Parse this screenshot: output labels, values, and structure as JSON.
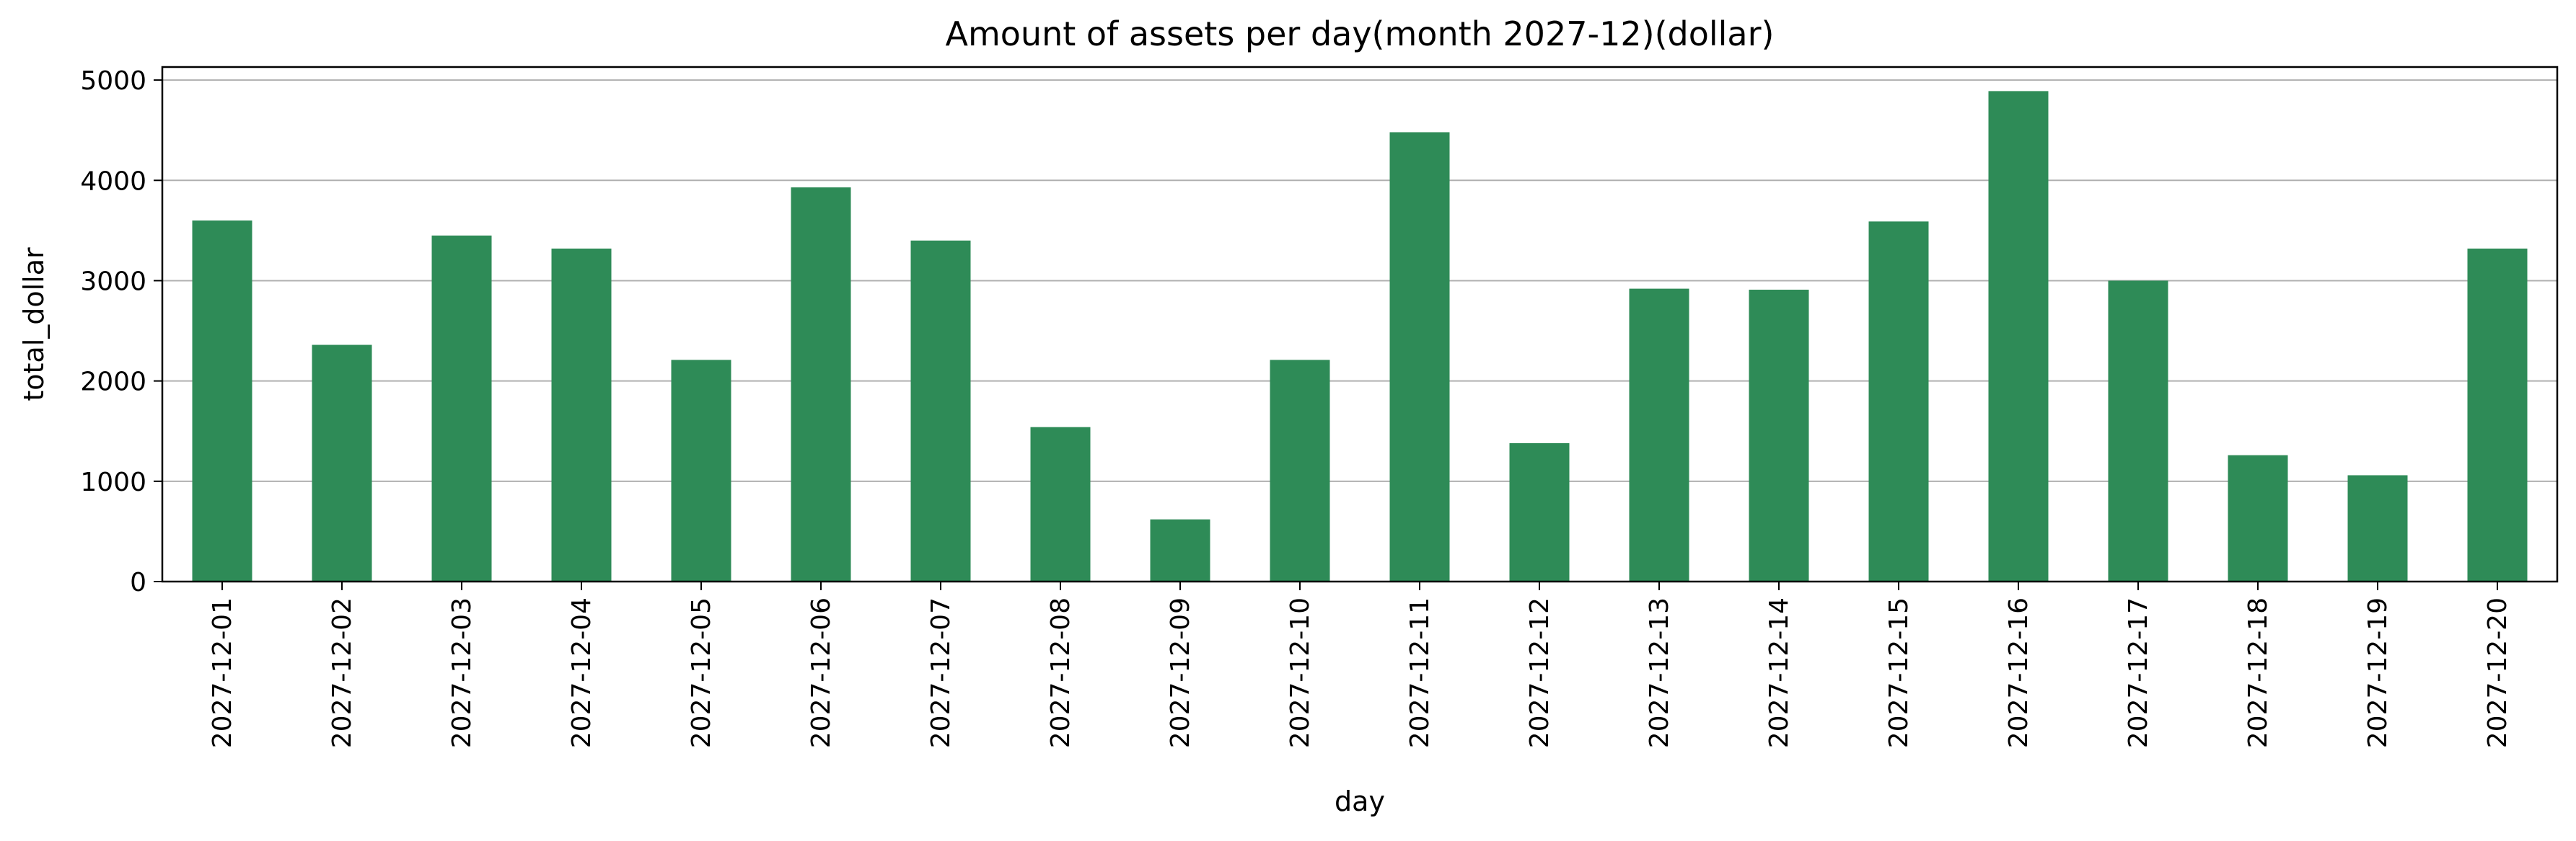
{
  "chart_data": {
    "type": "bar",
    "title": "Amount of assets per day(month  2027-12)(dollar)",
    "xlabel": "day",
    "ylabel": "total_dollar",
    "categories": [
      "2027-12-01",
      "2027-12-02",
      "2027-12-03",
      "2027-12-04",
      "2027-12-05",
      "2027-12-06",
      "2027-12-07",
      "2027-12-08",
      "2027-12-09",
      "2027-12-10",
      "2027-12-11",
      "2027-12-12",
      "2027-12-13",
      "2027-12-14",
      "2027-12-15",
      "2027-12-16",
      "2027-12-17",
      "2027-12-18",
      "2027-12-19",
      "2027-12-20"
    ],
    "values": [
      3600,
      2360,
      3450,
      3320,
      2210,
      3930,
      3400,
      1540,
      620,
      2210,
      4480,
      1380,
      2920,
      2910,
      3590,
      4890,
      3000,
      1260,
      1060,
      3320
    ],
    "ylim": [
      0,
      5130
    ],
    "yticks": [
      0,
      1000,
      2000,
      3000,
      4000,
      5000
    ],
    "grid": "y",
    "bar_color": "#2e8b57",
    "legend": "none"
  }
}
